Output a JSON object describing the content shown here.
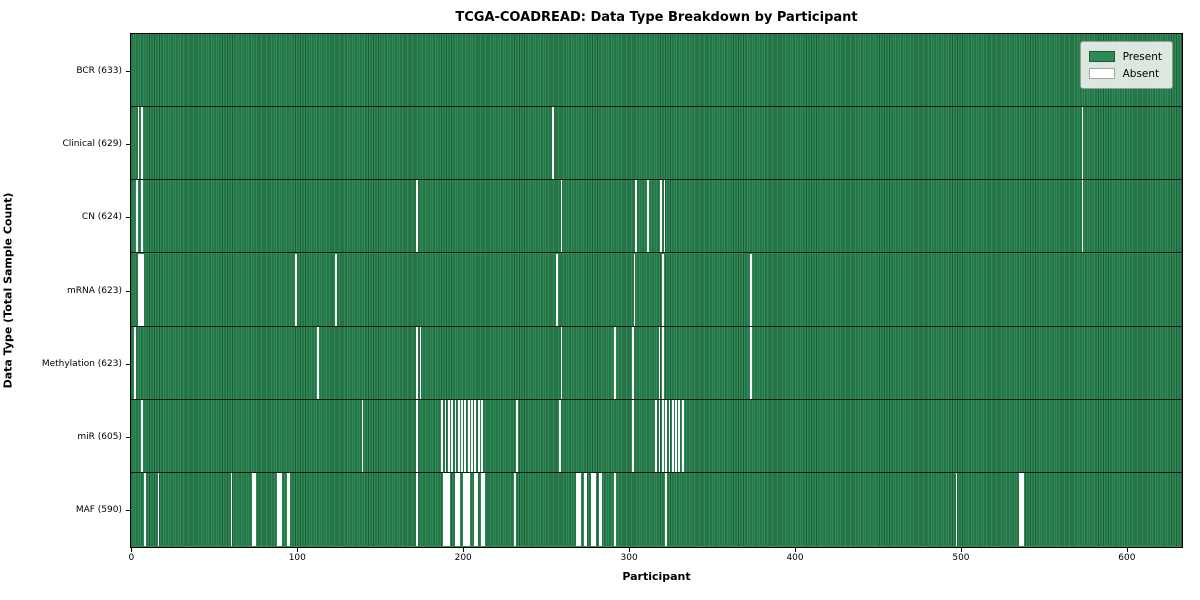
{
  "title": "TCGA-COADREAD: Data Type Breakdown by Participant",
  "xlabel": "Participant",
  "ylabel": "Data Type (Total Sample Count)",
  "legend": {
    "present_label": "Present",
    "absent_label": "Absent"
  },
  "colors": {
    "present": "#2e8b57",
    "present_edge": "#1e5c39",
    "absent": "#ffffff",
    "separator": "#0d1a12"
  },
  "chart_data": {
    "type": "heatmap",
    "title": "TCGA-COADREAD: Data Type Breakdown by Participant",
    "xlabel": "Participant",
    "ylabel": "Data Type (Total Sample Count)",
    "legend_entries": [
      "Present",
      "Absent"
    ],
    "legend_position": "upper right",
    "grid": false,
    "n_participants": 633,
    "x_range": [
      0,
      633
    ],
    "x_ticks": [
      0,
      100,
      200,
      300,
      400,
      500,
      600
    ],
    "rows": [
      {
        "label": "BCR (633)",
        "data_type": "BCR",
        "total_sample_count": 633,
        "absent_count": 0,
        "absent_participants": []
      },
      {
        "label": "Clinical (629)",
        "data_type": "Clinical",
        "total_sample_count": 629,
        "absent_count": 4,
        "absent_participants": [
          4,
          6,
          254,
          573
        ]
      },
      {
        "label": "CN (624)",
        "data_type": "CN",
        "total_sample_count": 624,
        "absent_count": 9,
        "absent_participants": [
          3,
          6,
          172,
          259,
          304,
          311,
          319,
          321,
          573
        ]
      },
      {
        "label": "mRNA (623)",
        "data_type": "mRNA",
        "total_sample_count": 623,
        "absent_count": 10,
        "absent_participants": [
          4,
          5,
          6,
          7,
          99,
          123,
          256,
          303,
          320,
          373
        ]
      },
      {
        "label": "Methylation (623)",
        "data_type": "Methylation",
        "total_sample_count": 623,
        "absent_count": 10,
        "absent_participants": [
          2,
          112,
          172,
          174,
          259,
          291,
          302,
          318,
          320,
          373
        ]
      },
      {
        "label": "miR (605)",
        "data_type": "miR",
        "total_sample_count": 605,
        "absent_count": 28,
        "absent_participants": [
          6,
          139,
          172,
          187,
          189,
          191,
          193,
          195,
          197,
          199,
          201,
          203,
          205,
          207,
          209,
          211,
          232,
          258,
          302,
          316,
          318,
          320,
          322,
          324,
          326,
          328,
          330,
          332
        ]
      },
      {
        "label": "MAF (590)",
        "data_type": "MAF",
        "total_sample_count": 590,
        "absent_count": 43,
        "absent_participants": [
          8,
          16,
          60,
          73,
          74,
          88,
          89,
          90,
          94,
          95,
          172,
          188,
          189,
          190,
          191,
          195,
          196,
          197,
          200,
          201,
          202,
          203,
          207,
          208,
          211,
          212,
          231,
          268,
          269,
          270,
          273,
          274,
          277,
          278,
          279,
          282,
          283,
          291,
          322,
          497,
          535,
          536,
          537
        ]
      }
    ]
  }
}
